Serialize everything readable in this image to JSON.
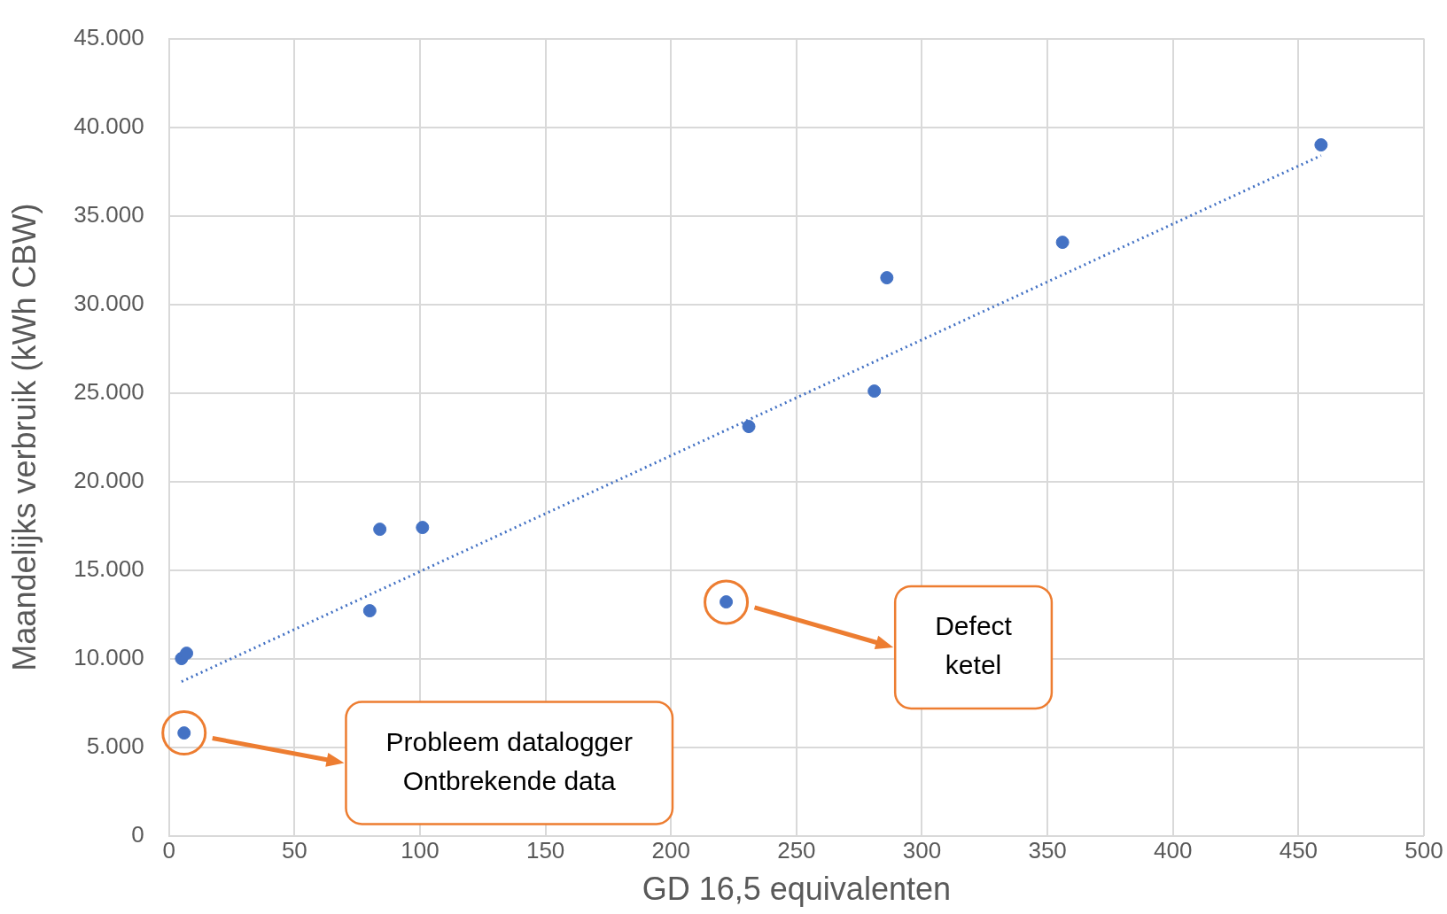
{
  "chart_data": {
    "type": "scatter",
    "xlabel": "GD 16,5 equivalenten",
    "ylabel": "Maandelijks verbruik (kWh CBW)",
    "xlim": [
      0,
      500
    ],
    "xticks": [
      0,
      50,
      100,
      150,
      200,
      250,
      300,
      350,
      400,
      450,
      500
    ],
    "ylim": [
      0,
      45000
    ],
    "yticks": [
      {
        "value": 0,
        "label": "0"
      },
      {
        "value": 5000,
        "label": "5.000"
      },
      {
        "value": 10000,
        "label": "10.000"
      },
      {
        "value": 15000,
        "label": "15.000"
      },
      {
        "value": 20000,
        "label": "20.000"
      },
      {
        "value": 25000,
        "label": "25.000"
      },
      {
        "value": 30000,
        "label": "30.000"
      },
      {
        "value": 35000,
        "label": "35.000"
      },
      {
        "value": 40000,
        "label": "40.000"
      },
      {
        "value": 45000,
        "label": "45.000"
      }
    ],
    "grid": true,
    "legend": false,
    "marker": "circle",
    "series": [
      {
        "color": "#4472c4",
        "x": [
          5,
          7,
          6,
          80,
          84,
          101,
          222,
          231,
          281,
          286,
          356,
          459
        ],
        "values": [
          10000,
          10300,
          5800,
          12700,
          17300,
          17400,
          13200,
          23100,
          25100,
          31500,
          33500,
          39000
        ]
      },
      {
        "type": "line",
        "color": "#4472c4",
        "line_style": "dotted",
        "marker": "none",
        "x": [
          5,
          459
        ],
        "values": [
          8700,
          38400
        ]
      }
    ],
    "annotations": [
      "Probleem datalogger\nOntbrekende data",
      "Defect\nketel"
    ]
  }
}
